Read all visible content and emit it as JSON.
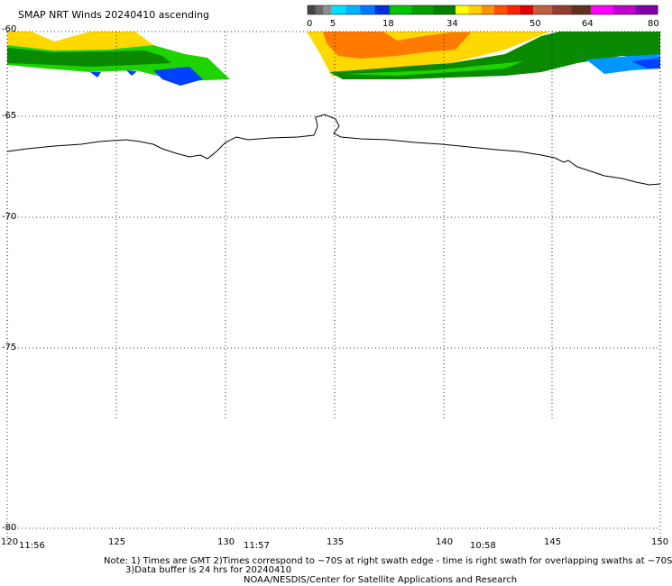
{
  "title": "SMAP NRT Winds 20240410 ascending",
  "colorbar": {
    "segments": [
      {
        "label": "grey",
        "colors": [
          "#444444",
          "#6a6a6a",
          "#8e8e8e"
        ]
      },
      {
        "label": "blue",
        "colors": [
          "#00e0ff",
          "#00b4ff",
          "#0078ff",
          "#0030e0"
        ]
      },
      {
        "label": "green",
        "colors": [
          "#00c800",
          "#00a000",
          "#008000"
        ]
      },
      {
        "label": "yellow-red",
        "colors": [
          "#ffff00",
          "#ffd000",
          "#ff9000",
          "#ff5000",
          "#ff2000",
          "#e00000"
        ]
      },
      {
        "label": "brown",
        "colors": [
          "#c06040",
          "#904030",
          "#603020"
        ]
      },
      {
        "label": "magenta",
        "colors": [
          "#ff00ff",
          "#c000d0",
          "#8000b0"
        ]
      }
    ],
    "ticks": [
      "0",
      "5",
      "18",
      "34",
      "50",
      "64",
      "80"
    ]
  },
  "lat_labels": [
    "-60",
    "-65",
    "-70",
    "-75",
    "-80"
  ],
  "lon_labels": [
    "120",
    "125",
    "130",
    "135",
    "140",
    "145",
    "150"
  ],
  "time_labels": [
    "11:56",
    "11:57",
    "10:58"
  ],
  "notes": {
    "line1": "Note: 1) Times are GMT 2)Times correspond to ~70S at right swath edge - time is right swath for overlapping swaths at ~70S",
    "line2": "3)Data buffer is 24 hrs for 20240410",
    "line3": "NOAA/NESDIS/Center for Satellite Applications and Research"
  },
  "colors": {
    "yellow": "#ffd800",
    "orange": "#ff7a00",
    "green_light": "#1ed400",
    "green_dark": "#0a8a00",
    "blue": "#0040ff",
    "blue_light": "#0096ff",
    "coast": "#000000",
    "grid": "#000000"
  }
}
